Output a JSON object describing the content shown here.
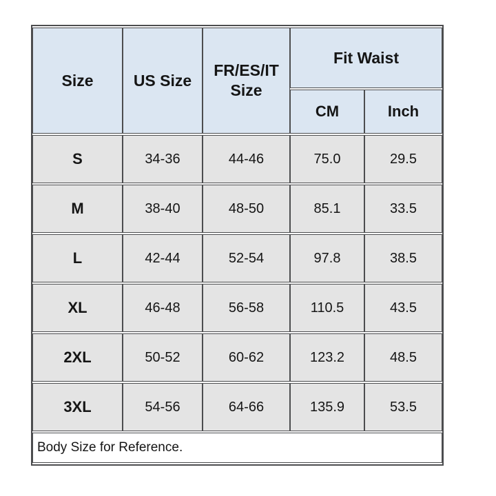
{
  "table": {
    "header": {
      "size": "Size",
      "us_size": "US Size",
      "fr_es_it_size": "FR/ES/IT Size",
      "fit_waist": "Fit Waist",
      "cm": "CM",
      "inch": "Inch"
    },
    "rows": [
      {
        "size": "S",
        "us": "34-36",
        "fr": "44-46",
        "cm": "75.0",
        "inch": "29.5"
      },
      {
        "size": "M",
        "us": "38-40",
        "fr": "48-50",
        "cm": "85.1",
        "inch": "33.5"
      },
      {
        "size": "L",
        "us": "42-44",
        "fr": "52-54",
        "cm": "97.8",
        "inch": "38.5"
      },
      {
        "size": "XL",
        "us": "46-48",
        "fr": "56-58",
        "cm": "110.5",
        "inch": "43.5"
      },
      {
        "size": "2XL",
        "us": "50-52",
        "fr": "60-62",
        "cm": "123.2",
        "inch": "48.5"
      },
      {
        "size": "3XL",
        "us": "54-56",
        "fr": "64-66",
        "cm": "135.9",
        "inch": "53.5"
      }
    ],
    "footer_note": "Body Size for Reference."
  },
  "colors": {
    "header_bg": "#dbe6f2",
    "row_bg": "#e4e4e4",
    "border": "#4c4d4f",
    "footer_bg": "#ffffff",
    "text": "#151515",
    "page_bg": "#ffffff"
  }
}
